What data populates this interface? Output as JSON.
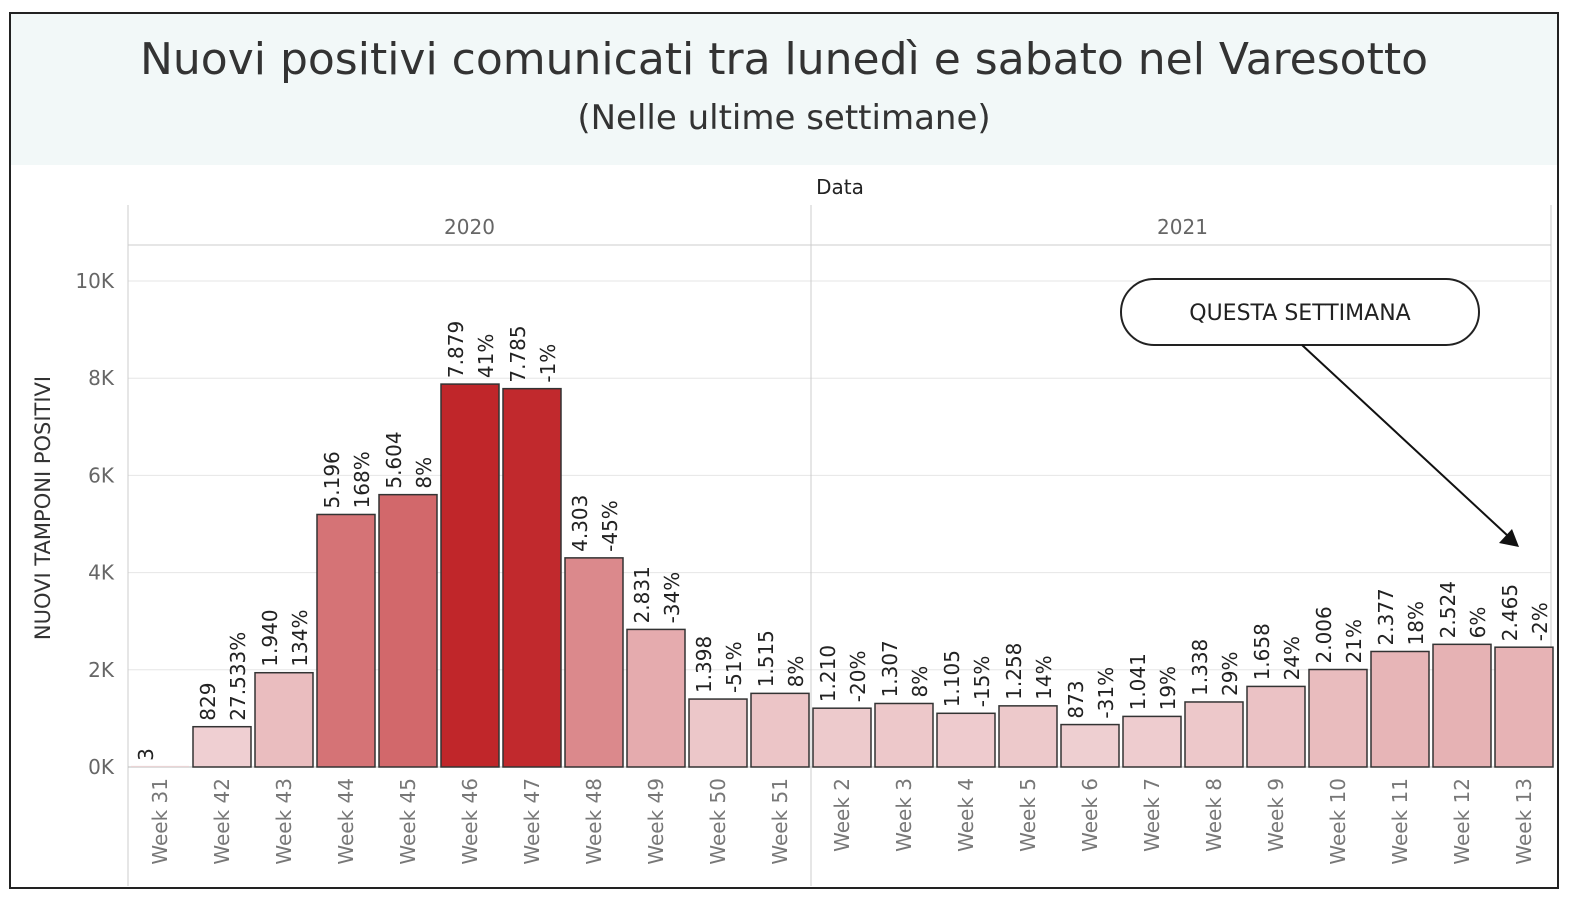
{
  "header": {
    "title": "Nuovi positivi comunicati tra lunedì e sabato nel Varesotto",
    "subtitle": "(Nelle ultime settimane)"
  },
  "chart_data": {
    "type": "bar",
    "title": "Nuovi positivi comunicati tra lunedì e sabato nel Varesotto",
    "subtitle": "(Nelle ultime settimane)",
    "xlabel": "Data",
    "ylabel": "NUOVI TAMPONI POSITIVI",
    "ylim": [
      0,
      11000
    ],
    "yticks": [
      0,
      2000,
      4000,
      6000,
      8000,
      10000
    ],
    "ytick_labels": [
      "0K",
      "2K",
      "4K",
      "6K",
      "8K",
      "10K"
    ],
    "grid": true,
    "groups": [
      {
        "name": "2020",
        "start": 0,
        "end": 10
      },
      {
        "name": "2021",
        "start": 11,
        "end": 22
      }
    ],
    "categories": [
      "Week 31",
      "Week 42",
      "Week 43",
      "Week 44",
      "Week 45",
      "Week 46",
      "Week 47",
      "Week 48",
      "Week 49",
      "Week 50",
      "Week 51",
      "Week 2",
      "Week 3",
      "Week 4",
      "Week 5",
      "Week 6",
      "Week 7",
      "Week 8",
      "Week 9",
      "Week 10",
      "Week 11",
      "Week 12",
      "Week 13"
    ],
    "values": [
      3,
      829,
      1940,
      5196,
      5604,
      7879,
      7785,
      4303,
      2831,
      1398,
      1515,
      1210,
      1307,
      1105,
      1258,
      873,
      1041,
      1338,
      1658,
      2006,
      2377,
      2524,
      2465
    ],
    "value_labels": [
      "3",
      "829",
      "1.940",
      "5.196",
      "5.604",
      "7.879",
      "7.785",
      "4.303",
      "2.831",
      "1.398",
      "1.515",
      "1.210",
      "1.307",
      "1.105",
      "1.258",
      "873",
      "1.041",
      "1.338",
      "1.658",
      "2.006",
      "2.377",
      "2.524",
      "2.465"
    ],
    "pct_labels": [
      "",
      "27.533%",
      "134%",
      "168%",
      "8%",
      "41%",
      "-1%",
      "-45%",
      "-34%",
      "-51%",
      "8%",
      "-20%",
      "8%",
      "-15%",
      "14%",
      "-31%",
      "19%",
      "29%",
      "24%",
      "21%",
      "18%",
      "6%",
      "-2%"
    ],
    "colors": {
      "low": "#f1d8da",
      "high": "#c0262a",
      "border": "#333333"
    },
    "annotation": {
      "text": "QUESTA SETTIMANA",
      "target_index": 22
    }
  }
}
